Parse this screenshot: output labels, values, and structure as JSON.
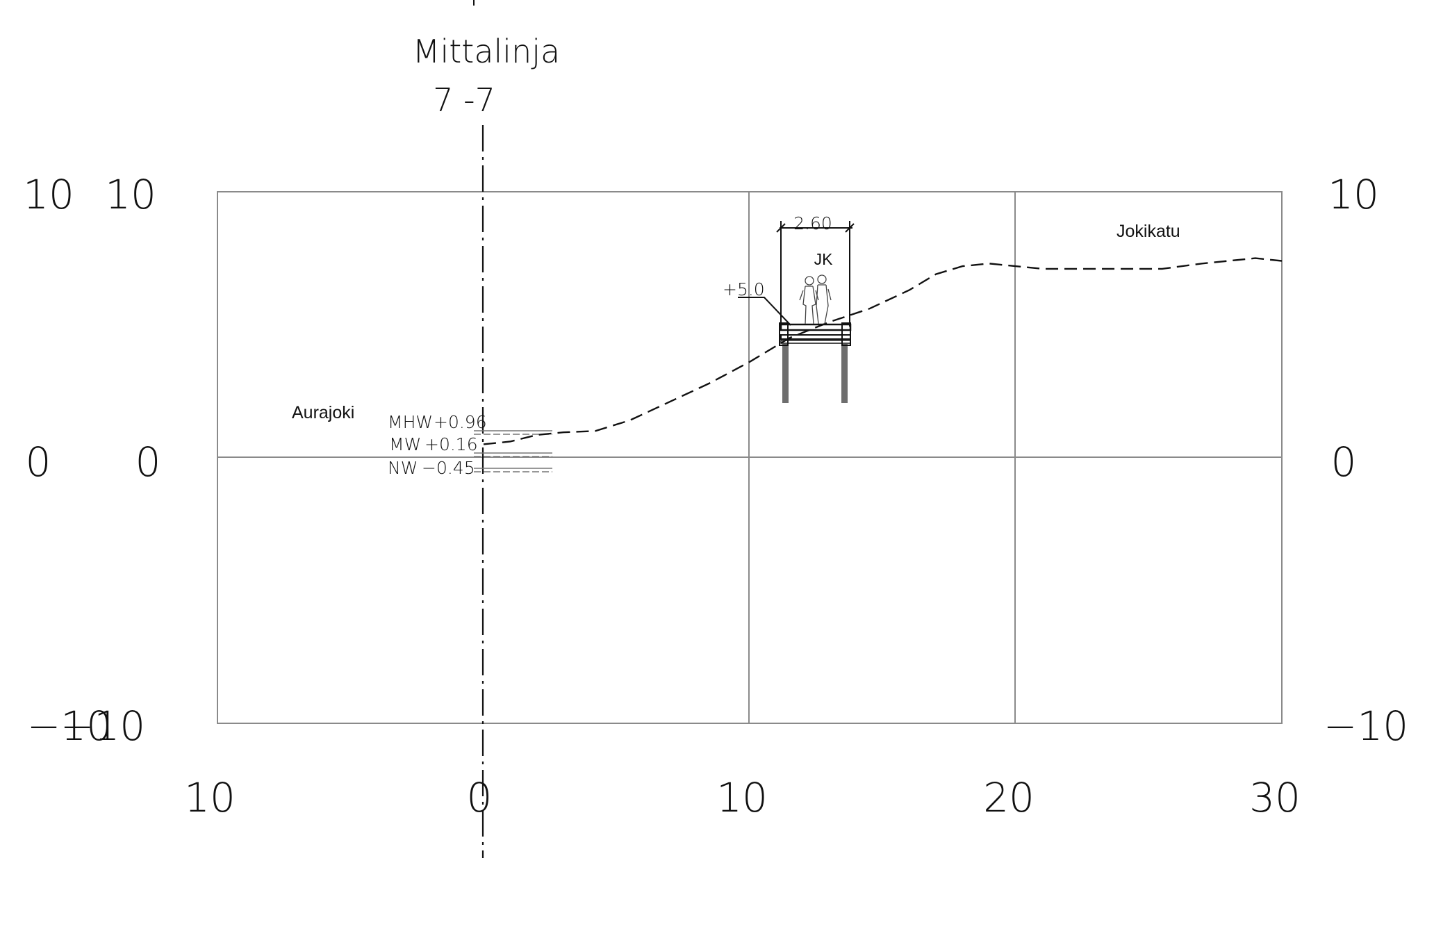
{
  "section": {
    "title": "Mittalinja",
    "number": "7 -7"
  },
  "axes": {
    "y_ticks_left_outer": [
      "10",
      "0",
      "−10"
    ],
    "y_ticks_left_inner": [
      "10",
      "0",
      "−10"
    ],
    "y_ticks_right": [
      "10",
      "0",
      "−10"
    ],
    "x_ticks": [
      "10",
      "0",
      "10",
      "20",
      "30"
    ],
    "x_range": [
      -10,
      30
    ],
    "y_range": [
      -10,
      10
    ]
  },
  "labels": {
    "river": "Aurajoki",
    "street": "Jokikatu",
    "walkway": "JK",
    "width_dim": "2.60",
    "deck_level": "+5.0"
  },
  "water_levels": [
    {
      "name": "MHW",
      "value": "+0.96"
    },
    {
      "name": "MW",
      "value": "+0.16"
    },
    {
      "name": "NW",
      "value": "−0.45"
    }
  ],
  "ground_profile": {
    "x": [
      0,
      1,
      2,
      3,
      4.2,
      5.5,
      7,
      8.5,
      10,
      11.5,
      13,
      14.5,
      16,
      17,
      18,
      19,
      21,
      23,
      25.5,
      27,
      29,
      30
    ],
    "y": [
      0.5,
      0.6,
      0.85,
      0.95,
      1.0,
      1.4,
      2.1,
      2.8,
      3.6,
      4.5,
      5.1,
      5.6,
      6.3,
      6.9,
      7.2,
      7.3,
      7.1,
      7.1,
      7.1,
      7.3,
      7.5,
      7.4
    ]
  }
}
